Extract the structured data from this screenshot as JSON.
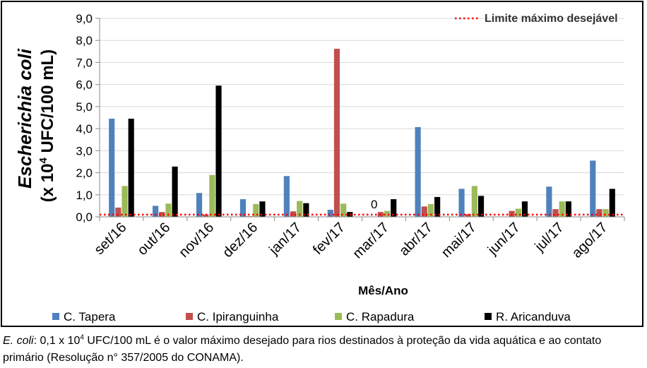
{
  "chart_data": {
    "type": "bar",
    "ylabel_italic": "Escherichia coli",
    "ylabel_prefix": "(x 10",
    "ylabel_sup": "4",
    "ylabel_suffix": " UFC/100 mL)",
    "xlabel": "Mês/Ano",
    "ylim": [
      0,
      9
    ],
    "yticks": [
      "0,0",
      "1,0",
      "2,0",
      "3,0",
      "4,0",
      "5,0",
      "6,0",
      "7,0",
      "8,0",
      "9,0"
    ],
    "grid": true,
    "categories": [
      "set/16",
      "out/16",
      "nov/16",
      "dez/16",
      "jan/17",
      "fev/17",
      "mar/17",
      "abr/17",
      "mai/17",
      "jun/17",
      "jul/17",
      "ago/17"
    ],
    "series": [
      {
        "name": "C. Tapera",
        "color": "#4f81bd",
        "values": [
          4.45,
          0.5,
          1.08,
          0.8,
          1.85,
          0.32,
          0,
          4.07,
          1.27,
          0,
          1.37,
          2.55
        ]
      },
      {
        "name": "C. Ipiranguinha",
        "color": "#c0504d",
        "values": [
          0.42,
          0.22,
          0.1,
          0.03,
          0.25,
          7.62,
          0.22,
          0.47,
          0.12,
          0.27,
          0.35,
          0.35
        ]
      },
      {
        "name": "C. Rapadura",
        "color": "#9bbb59",
        "values": [
          1.4,
          0.6,
          1.9,
          0.58,
          0.72,
          0.6,
          0.27,
          0.58,
          1.4,
          0.37,
          0.7,
          0.35
        ]
      },
      {
        "name": "R. Aricanduva",
        "color": "#000000",
        "values": [
          4.45,
          2.28,
          5.95,
          0.7,
          0.62,
          0.22,
          0.8,
          0.9,
          0.95,
          0.7,
          0.7,
          1.27
        ]
      }
    ],
    "threshold": {
      "label": "Limite máximo desejável",
      "value": 0.1,
      "color": "#ff0000"
    },
    "annotations": [
      {
        "text": "0",
        "category": "mar/17",
        "series": "C. Tapera"
      }
    ],
    "legend_position": "bottom"
  },
  "caption": {
    "italic": "E. coli",
    "part1": ": 0,1 x 10",
    "sup": "4",
    "part2": " UFC/100 mL é o valor máximo desejado para rios destinados à proteção da vida aquática e ao contato primário (Resolução n° 357/2005 do CONAMA)."
  }
}
